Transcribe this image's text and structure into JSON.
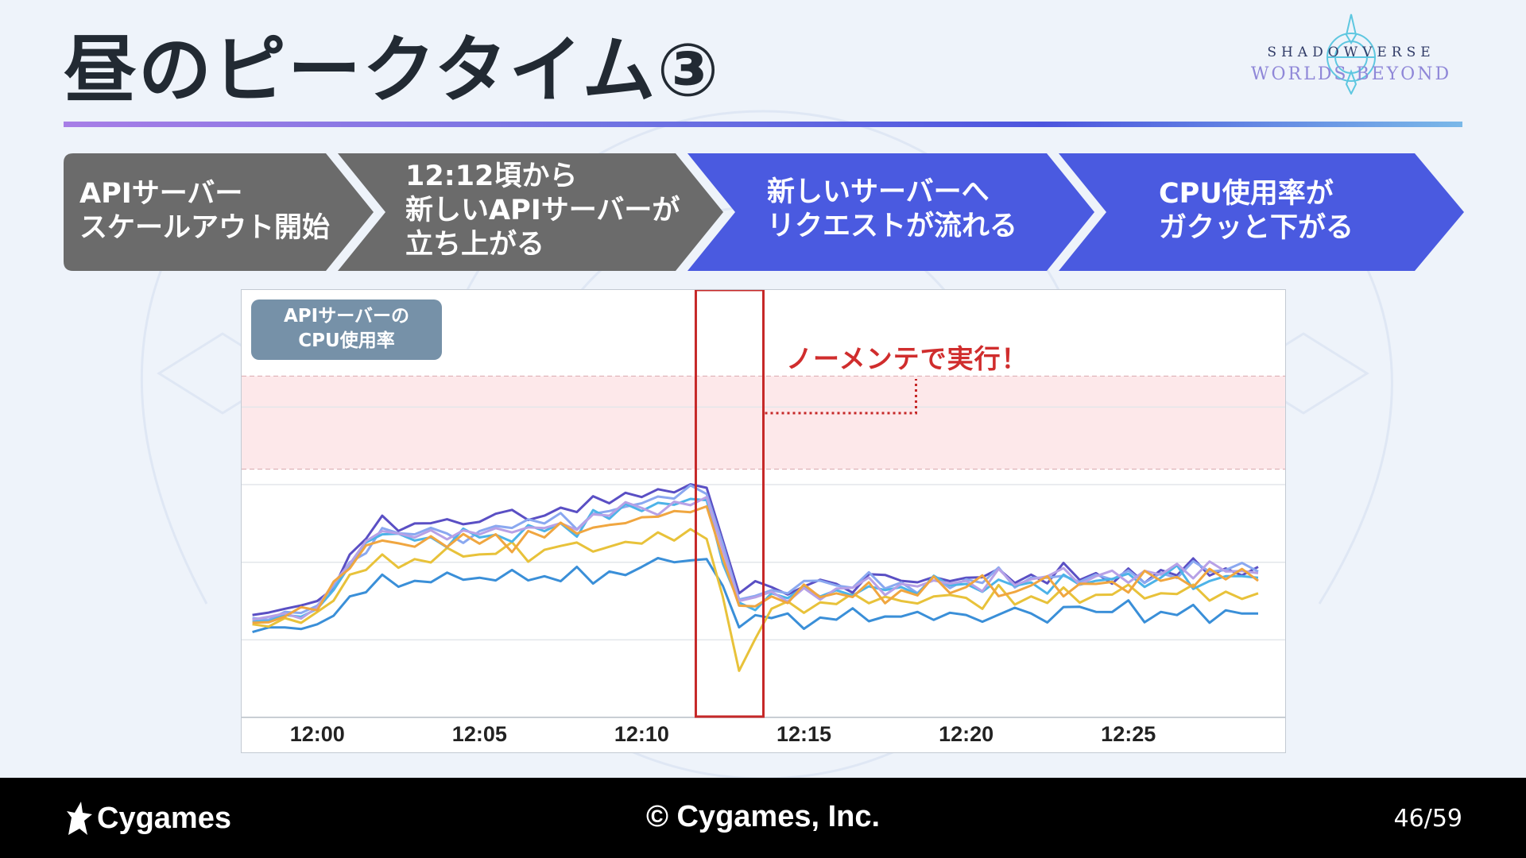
{
  "slide": {
    "title": "昼のピークタイム③",
    "page_number": "46/59"
  },
  "logo": {
    "line1": "SHADOWVERSE",
    "line2": "WORLDS BEYOND"
  },
  "flow_steps": [
    {
      "label": "APIサーバー\nスケールアウト開始",
      "color": "#6b6b6b"
    },
    {
      "label": "12:12頃から\n新しいAPIサーバーが\n立ち上がる",
      "color": "#6b6b6b"
    },
    {
      "label": "新しいサーバーへ\nリクエストが流れる",
      "color": "#4a5ae0"
    },
    {
      "label": "CPU使用率が\nガクッと下がる",
      "color": "#4a5ae0"
    }
  ],
  "footer": {
    "brand": "Cygames",
    "copyright": "© Cygames, Inc."
  },
  "colors": {
    "threshold_band": "#fde8ea",
    "highlight_box": "#c62828",
    "annotation": "#d02d2d"
  },
  "chart_data": {
    "type": "line",
    "title": "",
    "ylabel": "APIサーバーの\nCPU使用率",
    "xlabel": "",
    "x_ticks": [
      "12:00",
      "12:05",
      "12:10",
      "12:15",
      "12:20",
      "12:25"
    ],
    "xlim": [
      "11:57:40",
      "12:29:50"
    ],
    "highlight_range": [
      "12:11:40",
      "12:13:45"
    ],
    "threshold_band_present": true,
    "annotation": "ノーメンテで実行！",
    "grid": "horizontal",
    "legend": "none",
    "series_count_note": "",
    "series": [
      {
        "color": "#3a8fd8",
        "x": [
          "11:58",
          "11:59",
          "12:00",
          "12:01",
          "12:02",
          "12:03",
          "12:05",
          "12:07",
          "12:09",
          "12:10",
          "12:11",
          "12:12",
          "12:13",
          "12:14",
          "12:16",
          "12:18",
          "12:20",
          "12:22",
          "12:24",
          "12:26",
          "12:28",
          "12:29"
        ],
        "y": [
          0.55,
          0.58,
          0.6,
          0.78,
          0.92,
          0.88,
          0.9,
          0.91,
          0.94,
          0.97,
          1.0,
          1.02,
          0.58,
          0.64,
          0.63,
          0.65,
          0.66,
          0.67,
          0.68,
          0.68,
          0.69,
          0.67
        ]
      },
      {
        "color": "#e8c23a",
        "x": [
          "11:58",
          "11:59",
          "12:00",
          "12:01",
          "12:02",
          "12:03",
          "12:05",
          "12:07",
          "12:09",
          "12:10",
          "12:11",
          "12:12",
          "12:13",
          "12:14",
          "12:16",
          "12:18",
          "12:20",
          "12:22",
          "12:24",
          "12:26",
          "12:28",
          "12:29"
        ],
        "y": [
          0.6,
          0.64,
          0.68,
          0.92,
          1.05,
          1.02,
          1.05,
          1.08,
          1.1,
          1.12,
          1.14,
          1.15,
          0.3,
          0.7,
          0.73,
          0.75,
          0.77,
          0.78,
          0.79,
          0.8,
          0.81,
          0.8
        ]
      },
      {
        "color": "#5a4fc4",
        "x": [
          "11:58",
          "11:59",
          "12:00",
          "12:01",
          "12:02",
          "12:03",
          "12:05",
          "12:07",
          "12:09",
          "12:10",
          "12:11",
          "12:12",
          "12:13",
          "12:14",
          "12:16",
          "12:18",
          "12:20",
          "12:22",
          "12:24",
          "12:26",
          "12:28",
          "12:29"
        ],
        "y": [
          0.66,
          0.7,
          0.75,
          1.05,
          1.3,
          1.25,
          1.26,
          1.3,
          1.38,
          1.42,
          1.45,
          1.48,
          0.8,
          0.84,
          0.86,
          0.88,
          0.9,
          0.92,
          0.93,
          0.95,
          0.96,
          0.97
        ]
      },
      {
        "color": "#8aa8f0",
        "x": [
          "11:58",
          "11:59",
          "12:00",
          "12:01",
          "12:02",
          "12:03",
          "12:05",
          "12:07",
          "12:09",
          "12:10",
          "12:11",
          "12:12",
          "12:13",
          "12:14",
          "12:16",
          "12:18",
          "12:20",
          "12:22",
          "12:24",
          "12:26",
          "12:28",
          "12:29"
        ],
        "y": [
          0.64,
          0.68,
          0.72,
          1.0,
          1.22,
          1.18,
          1.2,
          1.25,
          1.33,
          1.38,
          1.41,
          1.44,
          0.76,
          0.82,
          0.85,
          0.87,
          0.89,
          0.9,
          0.92,
          0.93,
          0.95,
          0.94
        ]
      },
      {
        "color": "#4db3e8",
        "x": [
          "11:58",
          "11:59",
          "12:00",
          "12:01",
          "12:02",
          "12:03",
          "12:05",
          "12:07",
          "12:09",
          "12:10",
          "12:11",
          "12:12",
          "12:13",
          "12:14",
          "12:16",
          "12:18",
          "12:20",
          "12:22",
          "12:24",
          "12:26",
          "12:28",
          "12:29"
        ],
        "y": [
          0.62,
          0.66,
          0.7,
          0.98,
          1.18,
          1.14,
          1.16,
          1.2,
          1.28,
          1.33,
          1.37,
          1.4,
          0.74,
          0.8,
          0.82,
          0.84,
          0.86,
          0.87,
          0.88,
          0.9,
          0.91,
          0.9
        ]
      },
      {
        "color": "#b7a1e6",
        "x": [
          "11:58",
          "11:59",
          "12:00",
          "12:01",
          "12:02",
          "12:03",
          "12:05",
          "12:07",
          "12:09",
          "12:10",
          "12:11",
          "12:12",
          "12:13",
          "12:14",
          "12:16",
          "12:18",
          "12:20",
          "12:22",
          "12:24",
          "12:26",
          "12:28",
          "12:29"
        ],
        "y": [
          0.63,
          0.67,
          0.71,
          0.99,
          1.2,
          1.16,
          1.18,
          1.22,
          1.3,
          1.35,
          1.39,
          1.42,
          0.75,
          0.81,
          0.83,
          0.86,
          0.88,
          0.89,
          0.91,
          0.92,
          0.94,
          0.93
        ]
      },
      {
        "color": "#f0a640",
        "x": [
          "11:58",
          "11:59",
          "12:00",
          "12:01",
          "12:02",
          "12:03",
          "12:05",
          "12:07",
          "12:09",
          "12:10",
          "12:11",
          "12:12",
          "12:13",
          "12:14",
          "12:16",
          "12:18",
          "12:20",
          "12:22",
          "12:24",
          "12:26",
          "12:28",
          "12:29"
        ],
        "y": [
          0.61,
          0.65,
          0.69,
          0.96,
          1.14,
          1.1,
          1.12,
          1.16,
          1.24,
          1.29,
          1.33,
          1.36,
          0.72,
          0.78,
          0.8,
          0.82,
          0.84,
          0.85,
          0.86,
          0.88,
          0.89,
          0.88
        ]
      }
    ],
    "y_gridlines": [
      0.5,
      1.0,
      1.5,
      2.0
    ]
  }
}
